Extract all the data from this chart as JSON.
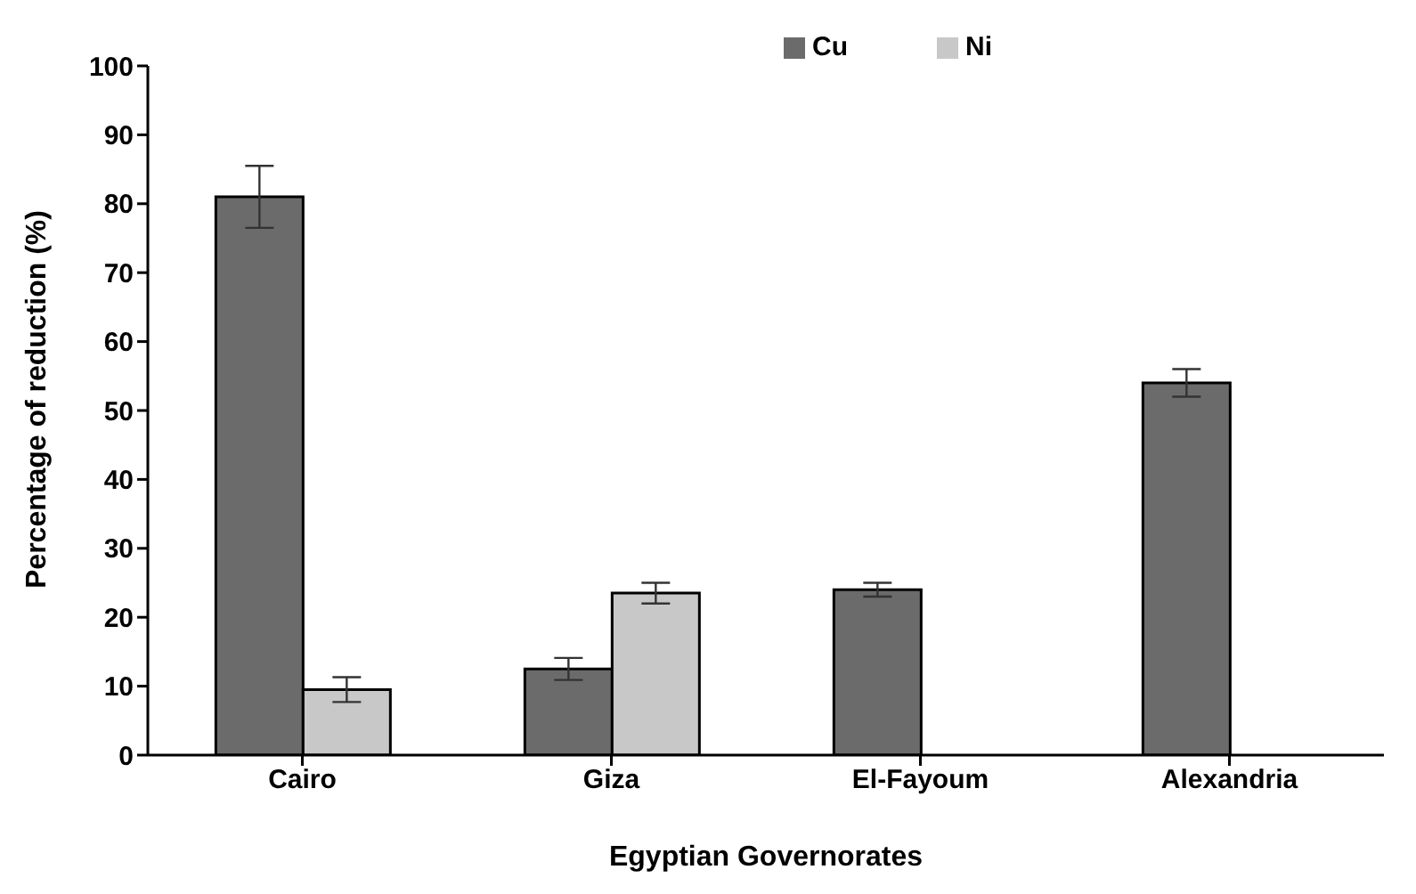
{
  "chart_data": {
    "type": "bar",
    "xlabel": "Egyptian Governorates",
    "ylabel": "Percentage of reduction (%)",
    "categories": [
      "Cairo",
      "Giza",
      "El-Fayoum",
      "Alexandria"
    ],
    "series": [
      {
        "name": "Cu",
        "color": "#6b6b6b",
        "values": [
          81,
          12.5,
          24,
          54
        ],
        "errors": [
          4.5,
          1.6,
          1,
          2
        ]
      },
      {
        "name": "Ni",
        "color": "#c8c8c8",
        "values": [
          9.5,
          23.5,
          null,
          null
        ],
        "errors": [
          1.8,
          1.5,
          null,
          null
        ]
      }
    ],
    "ylim": [
      0,
      100
    ],
    "yticks": [
      0,
      10,
      20,
      30,
      40,
      50,
      60,
      70,
      80,
      90,
      100
    ],
    "grid": false,
    "legend": "top right"
  }
}
